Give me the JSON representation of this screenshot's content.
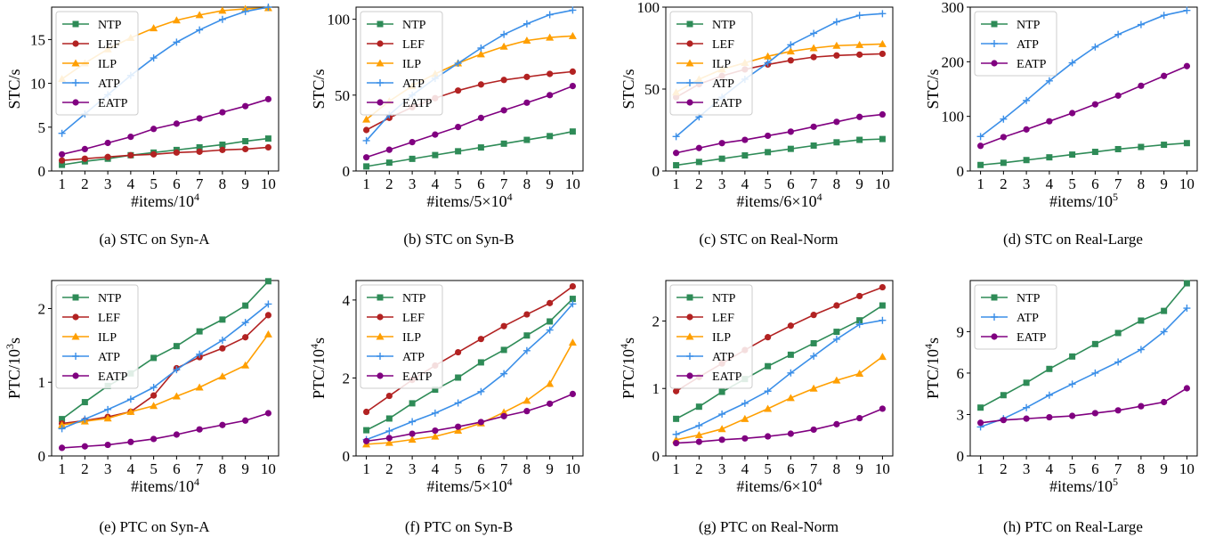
{
  "styles": {
    "NTP": {
      "color": "#2e8b57",
      "marker": "square"
    },
    "LEF": {
      "color": "#b22222",
      "marker": "circle"
    },
    "ILP": {
      "color": "#ff9f00",
      "marker": "triangle"
    },
    "ATP": {
      "color": "#3b8fe8",
      "marker": "plus"
    },
    "EATP": {
      "color": "#800080",
      "marker": "circle"
    }
  },
  "chart_data": [
    {
      "type": "line",
      "caption": "(a) STC on Syn-A",
      "xlabel": "#items/10",
      "xlabel_sup": "4",
      "xlabel_suffix": "",
      "ylabel": "STC/s",
      "ylabel_sup": "",
      "ylabel_suffix": "",
      "x": [
        1,
        2,
        3,
        4,
        5,
        6,
        7,
        8,
        9,
        10
      ],
      "ylim": [
        0,
        18.7
      ],
      "yticks": [
        0,
        5,
        10,
        15
      ],
      "ytick_labels": [
        "0",
        "5",
        "10",
        "15"
      ],
      "series": [
        {
          "name": "NTP",
          "values": [
            0.7,
            1.1,
            1.4,
            1.8,
            2.1,
            2.4,
            2.7,
            3.0,
            3.4,
            3.7
          ]
        },
        {
          "name": "LEF",
          "values": [
            1.2,
            1.4,
            1.6,
            1.8,
            1.9,
            2.1,
            2.2,
            2.4,
            2.5,
            2.7
          ]
        },
        {
          "name": "ILP",
          "values": [
            10.5,
            12.3,
            13.9,
            15.2,
            16.3,
            17.2,
            17.8,
            18.3,
            18.5,
            18.6
          ]
        },
        {
          "name": "ATP",
          "values": [
            4.3,
            6.5,
            8.7,
            10.9,
            12.9,
            14.7,
            16.1,
            17.3,
            18.2,
            18.7
          ]
        },
        {
          "name": "EATP",
          "values": [
            1.9,
            2.5,
            3.2,
            3.9,
            4.8,
            5.4,
            6.0,
            6.7,
            7.4,
            8.2
          ]
        }
      ]
    },
    {
      "type": "line",
      "caption": "(b) STC on Syn-B",
      "xlabel": "#items/5×10",
      "xlabel_sup": "4",
      "xlabel_suffix": "",
      "ylabel": "STC/s",
      "ylabel_sup": "",
      "ylabel_suffix": "",
      "x": [
        1,
        2,
        3,
        4,
        5,
        6,
        7,
        8,
        9,
        10
      ],
      "ylim": [
        0,
        108
      ],
      "yticks": [
        0,
        50,
        100
      ],
      "ytick_labels": [
        "0",
        "50",
        "100"
      ],
      "series": [
        {
          "name": "NTP",
          "values": [
            3,
            5.5,
            8,
            10.5,
            13,
            15.5,
            18,
            20.5,
            23,
            26
          ]
        },
        {
          "name": "LEF",
          "values": [
            27,
            35,
            42,
            48,
            53,
            57,
            60,
            62,
            64,
            65.5
          ]
        },
        {
          "name": "ILP",
          "values": [
            34,
            46,
            56,
            64,
            71,
            77,
            82,
            86,
            88,
            89
          ]
        },
        {
          "name": "ATP",
          "values": [
            20,
            37,
            50,
            61,
            71,
            81,
            90,
            97,
            103,
            106
          ]
        },
        {
          "name": "EATP",
          "values": [
            9,
            14,
            19,
            24,
            29,
            35,
            40,
            45,
            50,
            56
          ]
        }
      ]
    },
    {
      "type": "line",
      "caption": "(c) STC on Real-Norm",
      "xlabel": "#items/6×10",
      "xlabel_sup": "4",
      "xlabel_suffix": "",
      "ylabel": "STC/s",
      "ylabel_sup": "",
      "ylabel_suffix": "",
      "x": [
        1,
        2,
        3,
        4,
        5,
        6,
        7,
        8,
        9,
        10
      ],
      "ylim": [
        0,
        100
      ],
      "yticks": [
        0,
        50,
        100
      ],
      "ytick_labels": [
        "0",
        "50",
        "100"
      ],
      "series": [
        {
          "name": "NTP",
          "values": [
            3.5,
            5.5,
            7.5,
            9.5,
            11.5,
            13.5,
            15.5,
            17.5,
            19,
            19.5
          ]
        },
        {
          "name": "LEF",
          "values": [
            45,
            53,
            58,
            62,
            65,
            67.5,
            69.5,
            70.5,
            71,
            71.5
          ]
        },
        {
          "name": "ILP",
          "values": [
            48,
            56,
            62,
            66,
            70,
            73,
            75,
            76.5,
            77,
            77.5
          ]
        },
        {
          "name": "ATP",
          "values": [
            21,
            33,
            45,
            56,
            66,
            77,
            84,
            91,
            95,
            96
          ]
        },
        {
          "name": "EATP",
          "values": [
            11,
            14,
            17,
            19,
            21.5,
            24,
            27,
            30,
            33,
            34.5
          ]
        }
      ]
    },
    {
      "type": "line",
      "caption": "(d) STC on Real-Large",
      "xlabel": "#items/10",
      "xlabel_sup": "5",
      "xlabel_suffix": "",
      "ylabel": "STC/s",
      "ylabel_sup": "",
      "ylabel_suffix": "",
      "x": [
        1,
        2,
        3,
        4,
        5,
        6,
        7,
        8,
        9,
        10
      ],
      "ylim": [
        0,
        300
      ],
      "yticks": [
        0,
        100,
        200,
        300
      ],
      "ytick_labels": [
        "0",
        "100",
        "200",
        "300"
      ],
      "series": [
        {
          "name": "NTP",
          "values": [
            11,
            15,
            20,
            25,
            30,
            35,
            40,
            44,
            48,
            51
          ]
        },
        {
          "name": "ATP",
          "values": [
            63,
            95,
            129,
            165,
            198,
            227,
            250,
            268,
            285,
            294
          ]
        },
        {
          "name": "EATP",
          "values": [
            46,
            62,
            76,
            91,
            106,
            122,
            138,
            156,
            174,
            192
          ]
        }
      ]
    },
    {
      "type": "line",
      "caption": "(e) PTC on Syn-A",
      "xlabel": "#items/10",
      "xlabel_sup": "4",
      "xlabel_suffix": "",
      "ylabel": "PTC/10",
      "ylabel_sup": "3",
      "ylabel_suffix": "s",
      "x": [
        1,
        2,
        3,
        4,
        5,
        6,
        7,
        8,
        9,
        10
      ],
      "ylim": [
        0,
        2.38
      ],
      "yticks": [
        0,
        1,
        2
      ],
      "ytick_labels": [
        "0",
        "1",
        "2"
      ],
      "series": [
        {
          "name": "NTP",
          "values": [
            0.5,
            0.73,
            0.95,
            1.12,
            1.33,
            1.49,
            1.69,
            1.85,
            2.04,
            2.37
          ]
        },
        {
          "name": "LEF",
          "values": [
            0.44,
            0.48,
            0.53,
            0.6,
            0.82,
            1.19,
            1.34,
            1.46,
            1.61,
            1.91
          ]
        },
        {
          "name": "ILP",
          "values": [
            0.42,
            0.47,
            0.51,
            0.6,
            0.68,
            0.81,
            0.93,
            1.08,
            1.23,
            1.65
          ]
        },
        {
          "name": "ATP",
          "values": [
            0.37,
            0.5,
            0.63,
            0.77,
            0.93,
            1.17,
            1.38,
            1.57,
            1.81,
            2.06
          ]
        },
        {
          "name": "EATP",
          "values": [
            0.11,
            0.13,
            0.15,
            0.19,
            0.23,
            0.29,
            0.36,
            0.42,
            0.48,
            0.58
          ]
        }
      ]
    },
    {
      "type": "line",
      "caption": "(f) PTC on Syn-B",
      "xlabel": "#items/5×10",
      "xlabel_sup": "4",
      "xlabel_suffix": "",
      "ylabel": "PTC/10",
      "ylabel_sup": "4",
      "ylabel_suffix": "s",
      "x": [
        1,
        2,
        3,
        4,
        5,
        6,
        7,
        8,
        9,
        10
      ],
      "ylim": [
        0,
        4.5
      ],
      "yticks": [
        0,
        2,
        4
      ],
      "ytick_labels": [
        "0",
        "2",
        "4"
      ],
      "series": [
        {
          "name": "NTP",
          "values": [
            0.66,
            0.96,
            1.35,
            1.7,
            2.01,
            2.4,
            2.72,
            3.09,
            3.45,
            4.03
          ]
        },
        {
          "name": "LEF",
          "values": [
            1.13,
            1.54,
            1.95,
            2.32,
            2.66,
            3.0,
            3.33,
            3.63,
            3.92,
            4.35
          ]
        },
        {
          "name": "ILP",
          "values": [
            0.3,
            0.34,
            0.42,
            0.5,
            0.65,
            0.84,
            1.12,
            1.42,
            1.85,
            2.91
          ]
        },
        {
          "name": "ATP",
          "values": [
            0.42,
            0.64,
            0.88,
            1.1,
            1.36,
            1.65,
            2.11,
            2.7,
            3.23,
            3.9
          ]
        },
        {
          "name": "EATP",
          "values": [
            0.38,
            0.46,
            0.57,
            0.65,
            0.75,
            0.87,
            1.02,
            1.15,
            1.34,
            1.59
          ]
        }
      ]
    },
    {
      "type": "line",
      "caption": "(g) PTC on Real-Norm",
      "xlabel": "#items/6×10",
      "xlabel_sup": "4",
      "xlabel_suffix": "",
      "ylabel": "PTC/10",
      "ylabel_sup": "4",
      "ylabel_suffix": "s",
      "x": [
        1,
        2,
        3,
        4,
        5,
        6,
        7,
        8,
        9,
        10
      ],
      "ylim": [
        0,
        2.6
      ],
      "yticks": [
        0,
        1,
        2
      ],
      "ytick_labels": [
        "0",
        "1",
        "2"
      ],
      "series": [
        {
          "name": "NTP",
          "values": [
            0.55,
            0.73,
            0.95,
            1.14,
            1.33,
            1.5,
            1.67,
            1.84,
            2.01,
            2.23
          ]
        },
        {
          "name": "LEF",
          "values": [
            0.96,
            1.17,
            1.37,
            1.57,
            1.76,
            1.93,
            2.09,
            2.23,
            2.37,
            2.5
          ]
        },
        {
          "name": "ILP",
          "values": [
            0.24,
            0.31,
            0.4,
            0.55,
            0.7,
            0.86,
            1.0,
            1.12,
            1.22,
            1.47
          ]
        },
        {
          "name": "ATP",
          "values": [
            0.32,
            0.45,
            0.62,
            0.78,
            0.96,
            1.23,
            1.48,
            1.73,
            1.95,
            2.01
          ]
        },
        {
          "name": "EATP",
          "values": [
            0.19,
            0.21,
            0.24,
            0.26,
            0.29,
            0.33,
            0.39,
            0.47,
            0.56,
            0.7
          ]
        }
      ]
    },
    {
      "type": "line",
      "caption": "(h) PTC on Real-Large",
      "xlabel": "#items/10",
      "xlabel_sup": "5",
      "xlabel_suffix": "",
      "ylabel": "PTC/10",
      "ylabel_sup": "4",
      "ylabel_suffix": "s",
      "x": [
        1,
        2,
        3,
        4,
        5,
        6,
        7,
        8,
        9,
        10
      ],
      "ylim": [
        0,
        12.7
      ],
      "yticks": [
        0,
        3,
        6,
        9
      ],
      "ytick_labels": [
        "0",
        "3",
        "6",
        "9"
      ],
      "series": [
        {
          "name": "NTP",
          "values": [
            3.5,
            4.4,
            5.3,
            6.3,
            7.2,
            8.1,
            8.9,
            9.8,
            10.5,
            12.5
          ]
        },
        {
          "name": "ATP",
          "values": [
            2.1,
            2.7,
            3.5,
            4.4,
            5.2,
            6.0,
            6.8,
            7.7,
            9.0,
            10.7
          ]
        },
        {
          "name": "EATP",
          "values": [
            2.4,
            2.6,
            2.7,
            2.8,
            2.9,
            3.1,
            3.3,
            3.6,
            3.9,
            4.9
          ]
        }
      ]
    }
  ]
}
